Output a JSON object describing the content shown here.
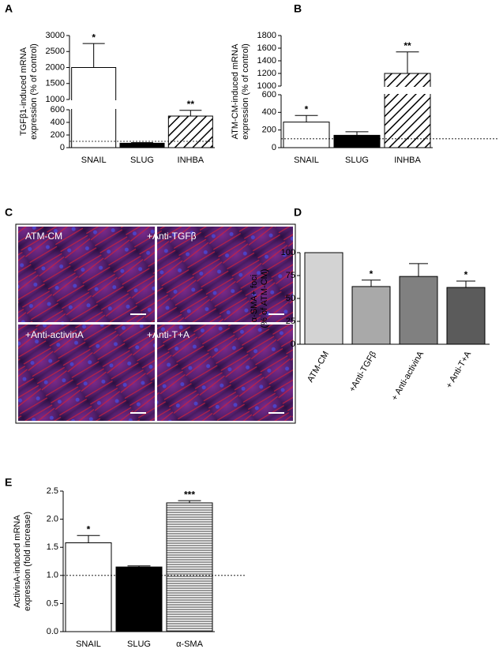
{
  "chart_data": [
    {
      "type": "bar",
      "panel_label": "A",
      "y_label": [
        "TGFβ1-induced mRNA",
        "expression (% of control)"
      ],
      "categories": [
        "SNAIL",
        "SLUG",
        "INHBA"
      ],
      "values": [
        2000,
        70,
        500
      ],
      "errors": [
        750,
        10,
        90
      ],
      "sig": [
        "*",
        null,
        "**"
      ],
      "fills": [
        "white",
        "black",
        "diagonal"
      ],
      "ylim": [
        0,
        3000
      ],
      "axis_break": [
        600,
        1000
      ],
      "yticks": [
        0,
        200,
        400,
        600,
        1000,
        1500,
        2000,
        2500,
        3000
      ],
      "reference": 100
    },
    {
      "type": "bar",
      "panel_label": "B",
      "y_label": [
        "ATM-CM-induced mRNA",
        "expression (% of control)"
      ],
      "categories": [
        "SNAIL",
        "SLUG",
        "INHBA"
      ],
      "values": [
        290,
        140,
        1200
      ],
      "errors": [
        75,
        40,
        340
      ],
      "sig": [
        "*",
        null,
        "**"
      ],
      "fills": [
        "white",
        "black",
        "diagonal"
      ],
      "ylim": [
        0,
        1800
      ],
      "axis_break": [
        600,
        1000
      ],
      "yticks": [
        0,
        200,
        400,
        600,
        1000,
        1200,
        1400,
        1600,
        1800
      ],
      "reference": 100
    },
    {
      "type": "bar",
      "panel_label": "D",
      "y_label": [
        "α-SMA+ foci",
        "(% of ATM-CM)"
      ],
      "categories": [
        "ATM-CM",
        "+Anti-TGFβ",
        "+ Anti-activinA",
        "+ Anti-T+A"
      ],
      "values": [
        100,
        63,
        74,
        62
      ],
      "errors": [
        null,
        7,
        14,
        7
      ],
      "sig": [
        null,
        "*",
        null,
        "*"
      ],
      "fills": [
        "#d3d3d3",
        "#a9a9a9",
        "#808080",
        "#5b5b5b"
      ],
      "ylim": [
        0,
        100
      ],
      "yticks": [
        0,
        25,
        50,
        75,
        100
      ],
      "rotate_labels": true
    },
    {
      "type": "bar",
      "panel_label": "E",
      "y_label": [
        "ActivinA-induced mRNA",
        "expression (fold increase)"
      ],
      "categories": [
        "SNAIL",
        "SLUG",
        "α-SMA"
      ],
      "values": [
        1.58,
        1.15,
        2.29
      ],
      "errors": [
        0.13,
        0.02,
        0.04
      ],
      "sig": [
        "*",
        null,
        "***"
      ],
      "fills": [
        "white",
        "black",
        "horizontal"
      ],
      "ylim": [
        0,
        2.5
      ],
      "yticks": [
        {
          "value": 0,
          "label": "0.0"
        },
        {
          "value": 0.5,
          "label": "0.5"
        },
        {
          "value": 1,
          "label": "1.0"
        },
        {
          "value": 1.5,
          "label": "1.5"
        },
        {
          "value": 2,
          "label": "2.0"
        },
        {
          "value": 2.5,
          "label": "2.5"
        }
      ],
      "reference": 1
    }
  ],
  "image_panel": {
    "panel_label": "C",
    "captions": [
      "ATM-CM",
      "+Anti-TGFβ",
      "+Anti-activinA",
      "+Anti-T+A"
    ]
  }
}
